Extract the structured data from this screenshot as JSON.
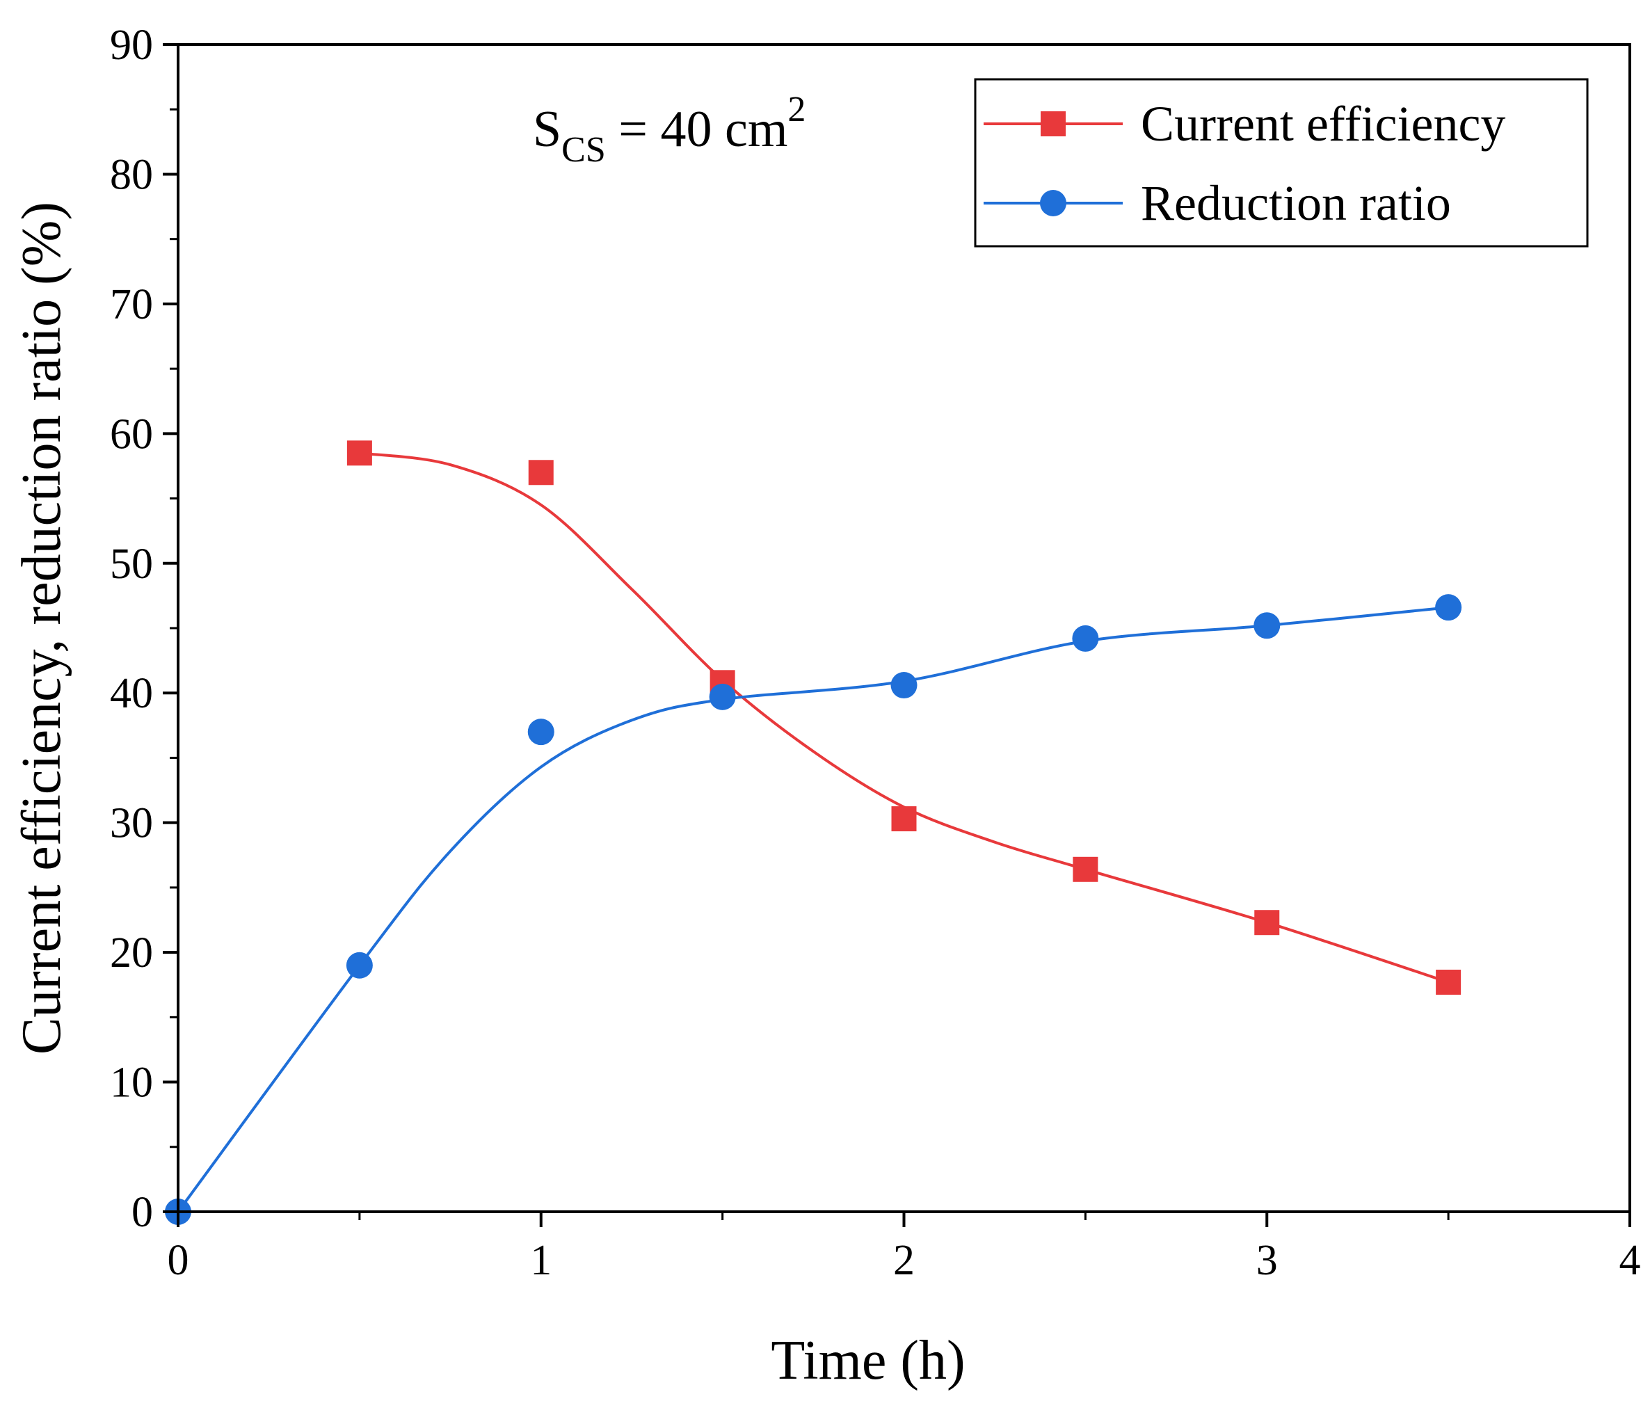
{
  "chart_data": {
    "type": "line",
    "xlabel": "Time (h)",
    "ylabel": "Current efficiency, reduction ratio (%)",
    "xlim": [
      0,
      4
    ],
    "ylim": [
      0,
      90
    ],
    "x_ticks": [
      "0",
      "1",
      "2",
      "3",
      "4"
    ],
    "y_ticks": [
      "0",
      "10",
      "20",
      "30",
      "40",
      "50",
      "60",
      "70",
      "80",
      "90"
    ],
    "grid": false,
    "legend_position": "top-right",
    "annotation": {
      "main": "S",
      "subscript": "CS",
      "rest": " = 40 cm",
      "superscript": "2"
    },
    "series": [
      {
        "name": "Current efficiency",
        "marker": "square",
        "color": "#e8393b",
        "points": [
          [
            0.5,
            58.5
          ],
          [
            1.0,
            57.0
          ],
          [
            1.5,
            40.8
          ],
          [
            2.0,
            30.3
          ],
          [
            2.5,
            26.4
          ],
          [
            3.0,
            22.3
          ],
          [
            3.5,
            17.7
          ]
        ],
        "curve": [
          [
            0.5,
            58.5
          ],
          [
            0.75,
            57.6
          ],
          [
            1.0,
            54.5
          ],
          [
            1.25,
            48.0
          ],
          [
            1.5,
            41.0
          ],
          [
            1.75,
            35.5
          ],
          [
            2.0,
            31.2
          ],
          [
            2.25,
            28.5
          ],
          [
            2.5,
            26.4
          ],
          [
            3.0,
            22.3
          ],
          [
            3.5,
            17.7
          ]
        ]
      },
      {
        "name": "Reduction ratio",
        "marker": "circle",
        "color": "#1f6fd8",
        "points": [
          [
            0,
            0
          ],
          [
            0.5,
            19.0
          ],
          [
            1.0,
            37.0
          ],
          [
            1.5,
            39.7
          ],
          [
            2.0,
            40.6
          ],
          [
            2.5,
            44.2
          ],
          [
            3.0,
            45.2
          ],
          [
            3.5,
            46.6
          ]
        ],
        "curve": [
          [
            0,
            0
          ],
          [
            0.5,
            19.0
          ],
          [
            0.75,
            27.8
          ],
          [
            1.0,
            34.3
          ],
          [
            1.25,
            37.9
          ],
          [
            1.5,
            39.5
          ],
          [
            2.0,
            40.9
          ],
          [
            2.5,
            44.0
          ],
          [
            3.0,
            45.2
          ],
          [
            3.5,
            46.6
          ]
        ]
      }
    ]
  }
}
